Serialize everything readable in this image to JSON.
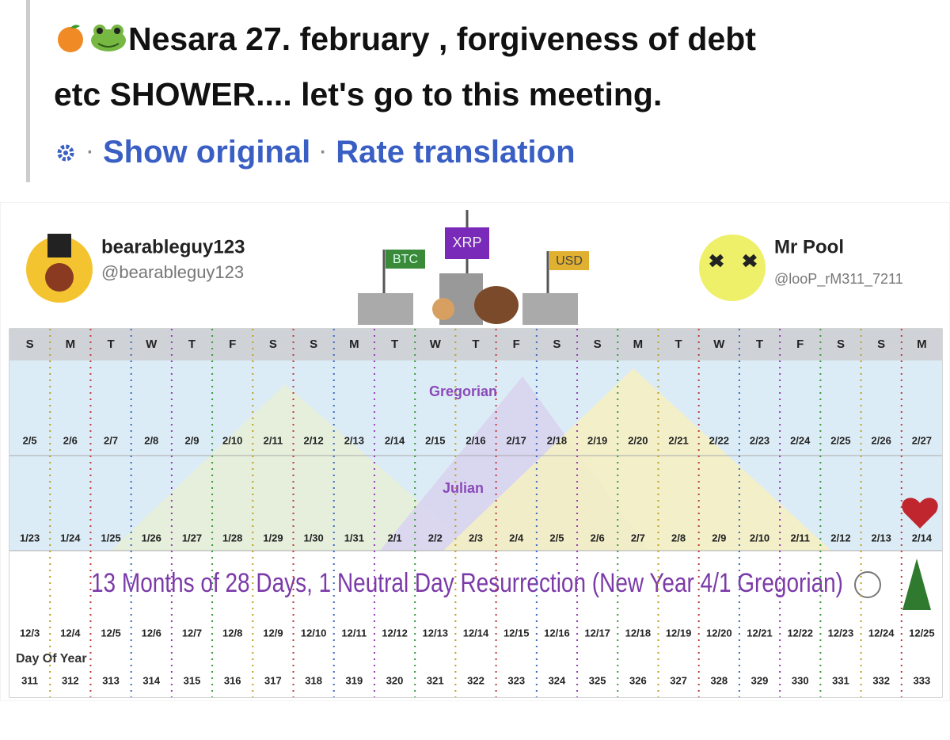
{
  "post": {
    "text_line1": "Nesara 27. february , forgiveness of debt",
    "text_line2": "etc SHOWER.... let's go to this meeting.",
    "show_original": "Show original",
    "rate_translation": "Rate translation"
  },
  "image": {
    "left_user": {
      "name": "bearableguy123",
      "handle": "@bearableguy123"
    },
    "right_user": {
      "name": "Mr Pool",
      "handle": "@looP_rM311_7211"
    },
    "flags": [
      "BTC",
      "XRP",
      "USD"
    ],
    "weekdays": [
      "S",
      "M",
      "T",
      "W",
      "T",
      "F",
      "S",
      "S",
      "M",
      "T",
      "W",
      "T",
      "F",
      "S",
      "S",
      "M",
      "T",
      "W",
      "T",
      "F",
      "S",
      "S",
      "M"
    ],
    "gregorian_label": "Gregorian",
    "gregorian_dates": [
      "2/5",
      "2/6",
      "2/7",
      "2/8",
      "2/9",
      "2/10",
      "2/11",
      "2/12",
      "2/13",
      "2/14",
      "2/15",
      "2/16",
      "2/17",
      "2/18",
      "2/19",
      "2/20",
      "2/21",
      "2/22",
      "2/23",
      "2/24",
      "2/25",
      "2/26",
      "2/27"
    ],
    "julian_label": "Julian",
    "julian_dates": [
      "1/23",
      "1/24",
      "1/25",
      "1/26",
      "1/27",
      "1/28",
      "1/29",
      "1/30",
      "1/31",
      "2/1",
      "2/2",
      "2/3",
      "2/4",
      "2/5",
      "2/6",
      "2/7",
      "2/8",
      "2/9",
      "2/10",
      "2/11",
      "2/12",
      "2/13",
      "2/14"
    ],
    "banner": "13 Months of 28 Days, 1 Neutral Day Resurrection (New Year 4/1 Gregorian)",
    "december_dates": [
      "12/3",
      "12/4",
      "12/5",
      "12/6",
      "12/7",
      "12/8",
      "12/9",
      "12/10",
      "12/11",
      "12/12",
      "12/13",
      "12/14",
      "12/15",
      "12/16",
      "12/17",
      "12/18",
      "12/19",
      "12/20",
      "12/21",
      "12/22",
      "12/23",
      "12/24",
      "12/25"
    ],
    "day_of_year_label": "Day Of Year",
    "day_of_year": [
      311,
      312,
      313,
      314,
      315,
      316,
      317,
      318,
      319,
      320,
      321,
      322,
      323,
      324,
      325,
      326,
      327,
      328,
      329,
      330,
      331,
      332,
      333
    ]
  }
}
